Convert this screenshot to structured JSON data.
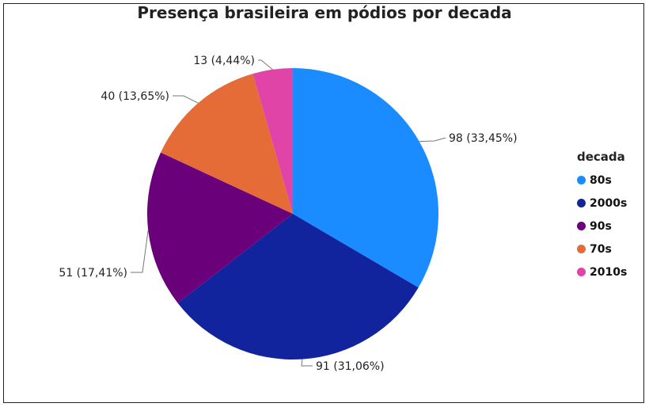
{
  "chart_data": {
    "type": "pie",
    "title": "Presença brasileira em pódios por decada",
    "legend_title": "decada",
    "legend_position": "right",
    "slices": [
      {
        "name": "80s",
        "value": 98,
        "label": "98 (33,45%)",
        "color": "#1a8cff"
      },
      {
        "name": "2000s",
        "value": 91,
        "label": "91 (31,06%)",
        "color": "#12239e"
      },
      {
        "name": "90s",
        "value": 51,
        "label": "51 (17,41%)",
        "color": "#6b007b"
      },
      {
        "name": "70s",
        "value": 40,
        "label": "40 (13,65%)",
        "color": "#e66c37"
      },
      {
        "name": "2010s",
        "value": 13,
        "label": "13 (4,44%)",
        "color": "#e044a7"
      }
    ]
  }
}
